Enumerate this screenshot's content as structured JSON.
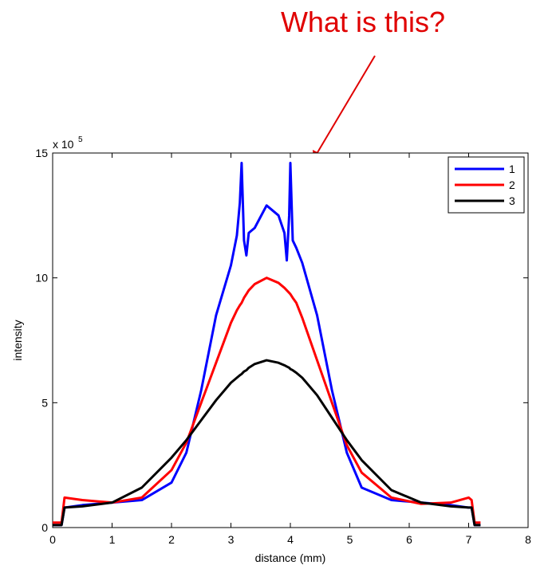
{
  "chart_data": {
    "type": "line",
    "annotation": "What is this?",
    "xlabel": "distance (mm)",
    "ylabel": "intensity",
    "y_scale_label": "x 10",
    "y_scale_exponent": "5",
    "x": [
      0,
      0.15,
      0.2,
      0.5,
      1,
      1.5,
      2,
      2.25,
      2.5,
      2.75,
      3,
      3.1,
      3.15,
      3.18,
      3.22,
      3.26,
      3.3,
      3.4,
      3.6,
      3.8,
      3.9,
      3.94,
      3.98,
      4.0,
      4.04,
      4.1,
      4.2,
      4.45,
      4.7,
      4.95,
      5.2,
      5.7,
      6.2,
      6.7,
      7.0,
      7.05,
      7.1,
      7.2
    ],
    "series": [
      {
        "name": "1",
        "color": "#0000ff",
        "values": [
          0.1,
          0.1,
          0.8,
          0.9,
          1.0,
          1.1,
          1.8,
          3.0,
          5.5,
          8.5,
          10.5,
          11.7,
          13.0,
          14.6,
          11.5,
          10.9,
          11.8,
          12.0,
          12.9,
          12.5,
          11.8,
          10.7,
          12.5,
          14.6,
          11.5,
          11.2,
          10.6,
          8.5,
          5.5,
          3.0,
          1.6,
          1.1,
          1.0,
          0.9,
          0.8,
          0.8,
          0.1,
          0.1
        ]
      },
      {
        "name": "2",
        "color": "#ff0000",
        "values": [
          0.2,
          0.2,
          1.2,
          1.1,
          1.0,
          1.2,
          2.3,
          3.4,
          5.0,
          6.6,
          8.2,
          8.7,
          8.9,
          9.0,
          9.2,
          9.35,
          9.5,
          9.75,
          10.0,
          9.8,
          9.6,
          9.5,
          9.4,
          9.35,
          9.2,
          9.0,
          8.4,
          6.7,
          5.0,
          3.3,
          2.2,
          1.2,
          0.95,
          1.0,
          1.2,
          1.1,
          0.2,
          0.2
        ]
      },
      {
        "name": "3",
        "color": "#000000",
        "values": [
          0.1,
          0.1,
          0.8,
          0.85,
          1.0,
          1.6,
          2.8,
          3.5,
          4.3,
          5.1,
          5.8,
          6.0,
          6.1,
          6.15,
          6.25,
          6.3,
          6.4,
          6.55,
          6.7,
          6.6,
          6.5,
          6.45,
          6.4,
          6.35,
          6.3,
          6.2,
          6.0,
          5.3,
          4.4,
          3.5,
          2.7,
          1.5,
          1.0,
          0.85,
          0.8,
          0.8,
          0.1,
          0.1
        ]
      }
    ],
    "xlim": [
      0,
      8
    ],
    "xticks": [
      0,
      1,
      2,
      3,
      4,
      5,
      6,
      7,
      8
    ],
    "ylim": [
      0,
      15
    ],
    "yticks": [
      0,
      5,
      10,
      15
    ],
    "grid": false,
    "legend": "top-right"
  }
}
